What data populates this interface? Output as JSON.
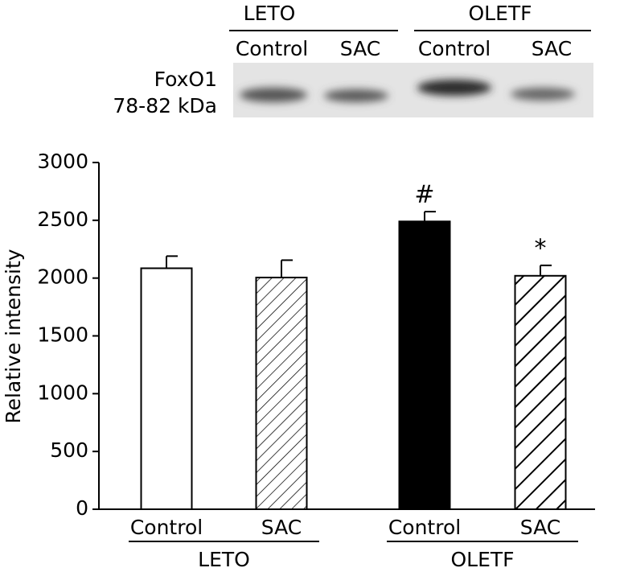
{
  "blot": {
    "label": "FoxO1",
    "size": "78-82 kDa",
    "groups": [
      "LETO",
      "OLETF"
    ],
    "lanes": [
      "Control",
      "SAC",
      "Control",
      "SAC"
    ]
  },
  "chart_data": {
    "type": "bar",
    "ylabel": "Relative intensity",
    "categories": [
      "Control",
      "SAC",
      "Control",
      "SAC"
    ],
    "groups": [
      {
        "name": "LETO",
        "members": [
          0,
          1
        ]
      },
      {
        "name": "OLETF",
        "members": [
          2,
          3
        ]
      }
    ],
    "values": [
      2085,
      2005,
      2490,
      2020
    ],
    "errors": [
      105,
      150,
      85,
      90
    ],
    "colors": [
      "#ffffff",
      "#ffffff",
      "#000000",
      "#ffffff"
    ],
    "hatch": [
      0,
      1.5,
      0,
      4
    ],
    "annotations": [
      null,
      null,
      "#",
      "*"
    ],
    "ylim": [
      0,
      3000
    ],
    "yticks": [
      0,
      500,
      1000,
      1500,
      2000,
      2500,
      3000
    ]
  }
}
